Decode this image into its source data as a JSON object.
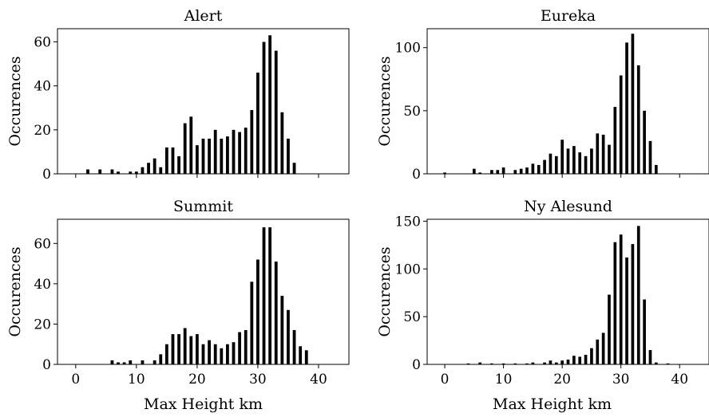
{
  "chart_data": [
    {
      "type": "bar",
      "title": "Alert",
      "xlabel": "",
      "ylabel": "Occurences",
      "xlim": [
        -3,
        45
      ],
      "ylim": [
        0,
        66
      ],
      "xticks": [
        0,
        10,
        20,
        30,
        40
      ],
      "yticks": [
        0,
        20,
        40,
        60
      ],
      "show_xtick_labels": false,
      "bar_width": 0.5,
      "x": [
        2,
        4,
        6,
        7,
        9,
        10,
        11,
        12,
        13,
        14,
        15,
        16,
        17,
        18,
        19,
        20,
        21,
        22,
        23,
        24,
        25,
        26,
        27,
        28,
        29,
        30,
        31,
        32,
        33,
        34,
        35,
        36
      ],
      "values": [
        2,
        2,
        2,
        1,
        1,
        1,
        3,
        5,
        7,
        3,
        12,
        12,
        8,
        23,
        26,
        13,
        16,
        16,
        20,
        16,
        17,
        20,
        19,
        21,
        29,
        46,
        60,
        63,
        56,
        28,
        16,
        5
      ]
    },
    {
      "type": "bar",
      "title": "Eureka",
      "xlabel": "",
      "ylabel": "Occurences",
      "xlim": [
        -3,
        45
      ],
      "ylim": [
        0,
        115
      ],
      "xticks": [
        0,
        10,
        20,
        30,
        40
      ],
      "yticks": [
        0,
        50,
        100
      ],
      "show_xtick_labels": false,
      "bar_width": 0.5,
      "x": [
        0,
        5,
        6,
        8,
        9,
        10,
        12,
        13,
        14,
        15,
        16,
        17,
        18,
        19,
        20,
        21,
        22,
        23,
        24,
        25,
        26,
        27,
        28,
        29,
        30,
        31,
        32,
        33,
        34,
        35,
        36
      ],
      "values": [
        1,
        4,
        1,
        3,
        3,
        5,
        3,
        4,
        5,
        8,
        7,
        11,
        16,
        14,
        27,
        20,
        22,
        17,
        14,
        20,
        32,
        31,
        23,
        53,
        78,
        104,
        111,
        86,
        50,
        26,
        7
      ]
    },
    {
      "type": "bar",
      "title": "Summit",
      "xlabel": "Max Height km",
      "ylabel": "Occurences",
      "xlim": [
        -3,
        45
      ],
      "ylim": [
        0,
        72
      ],
      "xticks": [
        0,
        10,
        20,
        30,
        40
      ],
      "yticks": [
        0,
        20,
        40,
        60
      ],
      "show_xtick_labels": true,
      "bar_width": 0.5,
      "x": [
        6,
        7,
        8,
        9,
        11,
        13,
        14,
        15,
        16,
        17,
        18,
        19,
        20,
        21,
        22,
        23,
        24,
        25,
        26,
        27,
        28,
        29,
        30,
        31,
        32,
        33,
        34,
        35,
        36,
        37,
        38
      ],
      "values": [
        2,
        1,
        1,
        2,
        2,
        2,
        5,
        10,
        15,
        15,
        18,
        14,
        15,
        10,
        12,
        10,
        8,
        10,
        11,
        16,
        17,
        41,
        52,
        68,
        68,
        51,
        34,
        27,
        17,
        9,
        7
      ]
    },
    {
      "type": "bar",
      "title": "Ny Alesund",
      "xlabel": "Max Height km",
      "ylabel": "Occurences",
      "xlim": [
        -3,
        45
      ],
      "ylim": [
        0,
        152
      ],
      "xticks": [
        0,
        10,
        20,
        30,
        40
      ],
      "yticks": [
        0,
        50,
        100,
        150
      ],
      "show_xtick_labels": true,
      "bar_width": 0.5,
      "x": [
        4,
        6,
        8,
        10,
        12,
        14,
        15,
        17,
        18,
        19,
        20,
        21,
        22,
        23,
        24,
        25,
        26,
        27,
        28,
        29,
        30,
        31,
        32,
        33,
        34,
        35,
        36,
        38
      ],
      "values": [
        1,
        2,
        1,
        1,
        1,
        1,
        2,
        2,
        4,
        2,
        4,
        5,
        9,
        8,
        10,
        17,
        26,
        33,
        73,
        128,
        136,
        112,
        126,
        145,
        68,
        15,
        2,
        1
      ]
    }
  ]
}
